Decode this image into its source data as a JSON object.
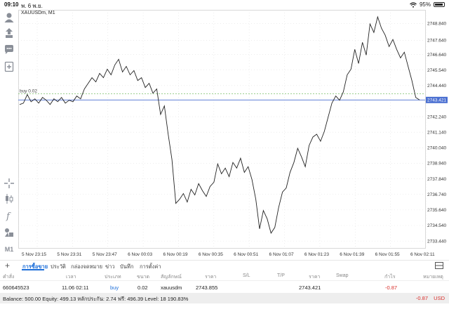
{
  "status_bar": {
    "time": "09:10",
    "date": "พ. 6 พ.ย.",
    "battery": "95%"
  },
  "chart": {
    "symbol": "XAUUSDm, M1",
    "order_line_label": "buy 0.02",
    "current_price_label": "2743.421"
  },
  "left_tools": {
    "timeframe": "M1"
  },
  "chart_data": {
    "type": "line",
    "x_ticks": [
      "5 Nov 23:15",
      "5 Nov 23:31",
      "5 Nov 23:47",
      "6 Nov 00:03",
      "6 Nov 00:19",
      "6 Nov 00:35",
      "6 Nov 00:51",
      "6 Nov 01:07",
      "6 Nov 01:23",
      "6 Nov 01:39",
      "6 Nov 01:55",
      "6 Nov 02:11"
    ],
    "y_ticks": [
      "2748.840",
      "2747.640",
      "2746.640",
      "2745.540",
      "2744.440",
      "2743.421",
      "2742.240",
      "2741.140",
      "2740.040",
      "2738.940",
      "2737.840",
      "2736.740",
      "2735.640",
      "2734.540",
      "2733.440"
    ],
    "ylim": [
      2732.9,
      2749.6
    ],
    "order_price": 2743.855,
    "current_price": 2743.421,
    "grid": true,
    "series": [
      {
        "values": [
          2743.1,
          2743.2,
          2743.8,
          2743.3,
          2743.5,
          2743.2,
          2743.6,
          2743.4,
          2743.1,
          2743.5,
          2743.3,
          2743.6,
          2743.2,
          2743.4,
          2743.3,
          2743.7,
          2743.5,
          2744.2,
          2744.6,
          2745.0,
          2744.7,
          2745.3,
          2745.0,
          2745.6,
          2745.2,
          2745.9,
          2746.3,
          2745.4,
          2745.8,
          2745.2,
          2745.5,
          2744.8,
          2745.0,
          2744.3,
          2744.6,
          2743.9,
          2744.2,
          2742.4,
          2743.0,
          2741.0,
          2739.2,
          2736.1,
          2736.4,
          2736.8,
          2736.2,
          2737.1,
          2736.7,
          2737.5,
          2737.0,
          2736.6,
          2737.3,
          2737.6,
          2738.9,
          2738.2,
          2738.6,
          2738.0,
          2739.0,
          2738.6,
          2739.3,
          2738.3,
          2738.7,
          2737.8,
          2736.4,
          2734.3,
          2735.6,
          2735.0,
          2734.0,
          2734.4,
          2735.8,
          2736.9,
          2737.2,
          2738.3,
          2739.0,
          2740.0,
          2739.4,
          2738.7,
          2740.2,
          2740.8,
          2741.0,
          2740.5,
          2741.2,
          2742.2,
          2743.2,
          2743.7,
          2743.4,
          2744.0,
          2745.2,
          2745.6,
          2747.0,
          2746.0,
          2747.5,
          2746.6,
          2748.8,
          2748.2,
          2749.3,
          2748.5,
          2748.0,
          2747.2,
          2747.7,
          2747.0,
          2746.4,
          2746.8,
          2745.8,
          2744.8,
          2743.6,
          2743.421
        ]
      }
    ]
  },
  "tabs": [
    {
      "label": "การซื้อขาย",
      "active": true
    },
    {
      "label": "ประวัติ",
      "active": false
    },
    {
      "label": "กล่องจดหมาย",
      "active": false
    },
    {
      "label": "ข่าว",
      "active": false
    },
    {
      "label": "บันทึก",
      "active": false
    },
    {
      "label": "การตั้งค่า",
      "active": false
    }
  ],
  "table": {
    "headers": [
      "คำสั่ง",
      "เวลา",
      "ประเภท",
      "ขนาด",
      "สัญลักษณ์",
      "ราคา",
      "S/L",
      "T/P",
      "ราคา",
      "Swap",
      "กำไร",
      "หมายเหตุ"
    ],
    "row": {
      "order": "660645523",
      "time": "11.06 02:11",
      "type": "buy",
      "size": "0.02",
      "symbol": "xauusdm",
      "price": "2743.855",
      "current_price": "2743.421",
      "profit": "-0.87"
    }
  },
  "balance": {
    "text": "Balance: 500.00 Equity: 499.13 หลักประกัน: 2.74 ฟรี: 496.39 Level: 18 190.83%",
    "pl": "-0.87",
    "currency": "USD"
  },
  "colors": {
    "accent": "#1e6fd9",
    "loss": "#d9302c",
    "price_line": "#4a6fd1",
    "order_line": "#7bbf6a"
  }
}
